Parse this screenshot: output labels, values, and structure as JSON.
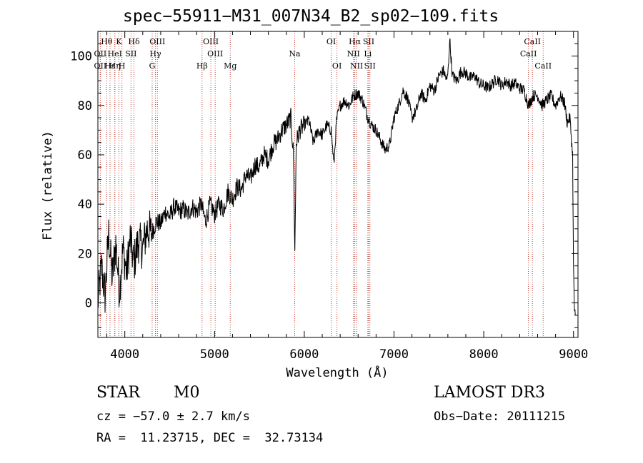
{
  "chart_data": {
    "type": "line",
    "title": "spec−55911−M31_007N34_B2_sp02−109.fits",
    "xlabel": "Wavelength (Å)",
    "ylabel": "Flux (relative)",
    "xlim": [
      3700,
      9050
    ],
    "ylim": [
      -14,
      110
    ],
    "xticks": [
      4000,
      5000,
      6000,
      7000,
      8000,
      9000
    ],
    "yticks": [
      0,
      20,
      40,
      60,
      80,
      100
    ],
    "series": [
      {
        "x": [
          3700,
          3740,
          3780,
          3820,
          3860,
          3900,
          3940,
          3980,
          4020,
          4060,
          4100,
          4150,
          4200,
          4250,
          4300,
          4350,
          4400,
          4450,
          4500,
          4550,
          4600,
          4650,
          4700,
          4750,
          4800,
          4850,
          4900,
          4950,
          5000,
          5050,
          5100,
          5150,
          5200,
          5250,
          5300,
          5350,
          5400,
          5450,
          5500,
          5550,
          5600,
          5650,
          5700,
          5750,
          5800,
          5850,
          5880,
          5895,
          5910,
          5950,
          6000,
          6050,
          6100,
          6150,
          6200,
          6250,
          6300,
          6330,
          6360,
          6400,
          6450,
          6500,
          6550,
          6600,
          6650,
          6700,
          6750,
          6800,
          6850,
          6900,
          6950,
          7000,
          7050,
          7100,
          7150,
          7200,
          7250,
          7300,
          7350,
          7400,
          7450,
          7500,
          7550,
          7590,
          7605,
          7620,
          7650,
          7700,
          7750,
          7800,
          7850,
          7900,
          7950,
          8000,
          8050,
          8100,
          8150,
          8200,
          8250,
          8300,
          8350,
          8400,
          8450,
          8500,
          8550,
          8600,
          8650,
          8700,
          8750,
          8800,
          8850,
          8900,
          8930,
          8960,
          8990,
          9000,
          9010,
          9020
        ],
        "y": [
          0,
          15,
          3,
          28,
          10,
          24,
          5,
          22,
          12,
          26,
          16,
          25,
          22,
          30,
          28,
          33,
          32,
          37,
          35,
          39,
          37,
          38,
          36,
          39,
          37,
          40,
          33,
          40,
          36,
          40,
          38,
          45,
          42,
          47,
          46,
          52,
          50,
          56,
          55,
          60,
          58,
          64,
          66,
          70,
          72,
          75,
          60,
          20,
          65,
          70,
          72,
          74,
          65,
          70,
          68,
          72,
          70,
          56,
          74,
          80,
          82,
          80,
          84,
          85,
          82,
          76,
          72,
          70,
          66,
          62,
          64,
          75,
          80,
          86,
          83,
          75,
          78,
          85,
          82,
          88,
          86,
          92,
          94,
          90,
          95,
          107,
          92,
          90,
          94,
          93,
          91,
          92,
          89,
          88,
          87,
          89,
          91,
          88,
          90,
          88,
          89,
          87,
          86,
          80,
          84,
          84,
          80,
          82,
          84,
          80,
          84,
          81,
          73,
          75,
          60,
          15,
          -3,
          -5
        ]
      }
    ],
    "lines": [
      {
        "name": "Hθ",
        "x": 3798,
        "row": 0
      },
      {
        "name": "K",
        "x": 3934,
        "row": 0
      },
      {
        "name": "Hδ",
        "x": 4102,
        "row": 0
      },
      {
        "name": "OIII",
        "x": 4363,
        "row": 0
      },
      {
        "name": "OIII",
        "x": 4959,
        "row": 0
      },
      {
        "name": "OI",
        "x": 6300,
        "row": 0
      },
      {
        "name": "Hα",
        "x": 6563,
        "row": 0
      },
      {
        "name": "SII",
        "x": 6717,
        "row": 0
      },
      {
        "name": "CaII",
        "x": 8542,
        "row": 0
      },
      {
        "name": "OII",
        "x": 3727,
        "row": 1
      },
      {
        "name": "HeI",
        "x": 3889,
        "row": 1
      },
      {
        "name": "SII",
        "x": 4069,
        "row": 1
      },
      {
        "name": "Hγ",
        "x": 4341,
        "row": 1
      },
      {
        "name": "OIII",
        "x": 5007,
        "row": 1
      },
      {
        "name": "NII",
        "x": 6548,
        "row": 1
      },
      {
        "name": "Li",
        "x": 6708,
        "row": 1
      },
      {
        "name": "CaII",
        "x": 8498,
        "row": 1
      },
      {
        "name": "OII",
        "x": 3727,
        "row": 2
      },
      {
        "name": "Hε",
        "x": 3835,
        "row": 2
      },
      {
        "name": "Hη",
        "x": 3889,
        "row": 2
      },
      {
        "name": "H",
        "x": 3968,
        "row": 2
      },
      {
        "name": "G",
        "x": 4305,
        "row": 2
      },
      {
        "name": "Hβ",
        "x": 4861,
        "row": 2
      },
      {
        "name": "Mg",
        "x": 5175,
        "row": 2
      },
      {
        "name": "Na",
        "x": 5893,
        "row": 1
      },
      {
        "name": "OI",
        "x": 6364,
        "row": 2
      },
      {
        "name": "NII",
        "x": 6583,
        "row": 2
      },
      {
        "name": "SII",
        "x": 6731,
        "row": 2
      },
      {
        "name": "CaII",
        "x": 8662,
        "row": 2
      }
    ],
    "grid": false
  },
  "info": {
    "class": "STAR",
    "subclass": "M0",
    "survey": "LAMOST DR3",
    "cz": "cz = −57.0 ± 2.7 km/s",
    "obsdate": "Obs−Date: 20111215",
    "radec": "RA =  11.23715, DEC =  32.73134"
  }
}
